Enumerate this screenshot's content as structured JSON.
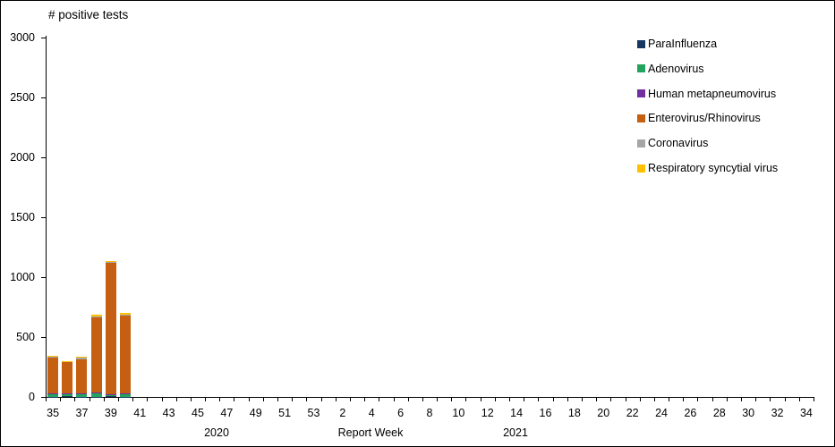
{
  "chart_data": {
    "type": "bar",
    "stacked": true,
    "title": "# positive tests",
    "xlabel": "Report Week",
    "year_labels": [
      {
        "text": "2020"
      },
      {
        "text": "2021"
      }
    ],
    "ylim": [
      0,
      3000
    ],
    "yticks": [
      0,
      500,
      1000,
      1500,
      2000,
      2500,
      3000
    ],
    "categories": [
      35,
      36,
      37,
      38,
      39,
      40,
      41,
      42,
      43,
      44,
      45,
      46,
      47,
      48,
      49,
      50,
      51,
      52,
      53,
      1,
      2,
      3,
      4,
      5,
      6,
      7,
      8,
      9,
      10,
      11,
      12,
      13,
      14,
      15,
      16,
      17,
      18,
      19,
      20,
      21,
      22,
      23,
      24,
      25,
      26,
      27,
      28,
      29,
      30,
      31,
      32,
      33,
      34
    ],
    "labeled_category_interval": 2,
    "bar_weeks": [
      35,
      36,
      37,
      38,
      39,
      40
    ],
    "series": [
      {
        "name": "ParaInfluenza",
        "color": "#17375E",
        "values": [
          3,
          6,
          3,
          3,
          5,
          3
        ]
      },
      {
        "name": "Adenovirus",
        "color": "#23A45E",
        "values": [
          24,
          18,
          20,
          30,
          8,
          24
        ]
      },
      {
        "name": "Human metapneumovirus",
        "color": "#7030A0",
        "values": [
          3,
          3,
          7,
          4,
          10,
          4
        ]
      },
      {
        "name": "Enterovirus/Rhinovirus",
        "color": "#C55F11",
        "values": [
          295,
          262,
          285,
          630,
          1094,
          652
        ]
      },
      {
        "name": "Coronavirus",
        "color": "#A6A6A6",
        "values": [
          8,
          6,
          12,
          8,
          8,
          7
        ]
      },
      {
        "name": "Respiratory syncytial virus",
        "color": "#FFC000",
        "values": [
          10,
          5,
          11,
          10,
          10,
          10
        ]
      }
    ],
    "bar_totals": [
      343,
      300,
      338,
      685,
      1135,
      700
    ],
    "legend_position": "right-top",
    "grid": false,
    "axis_color": "#000000",
    "background_color": "#FFFFFF"
  }
}
